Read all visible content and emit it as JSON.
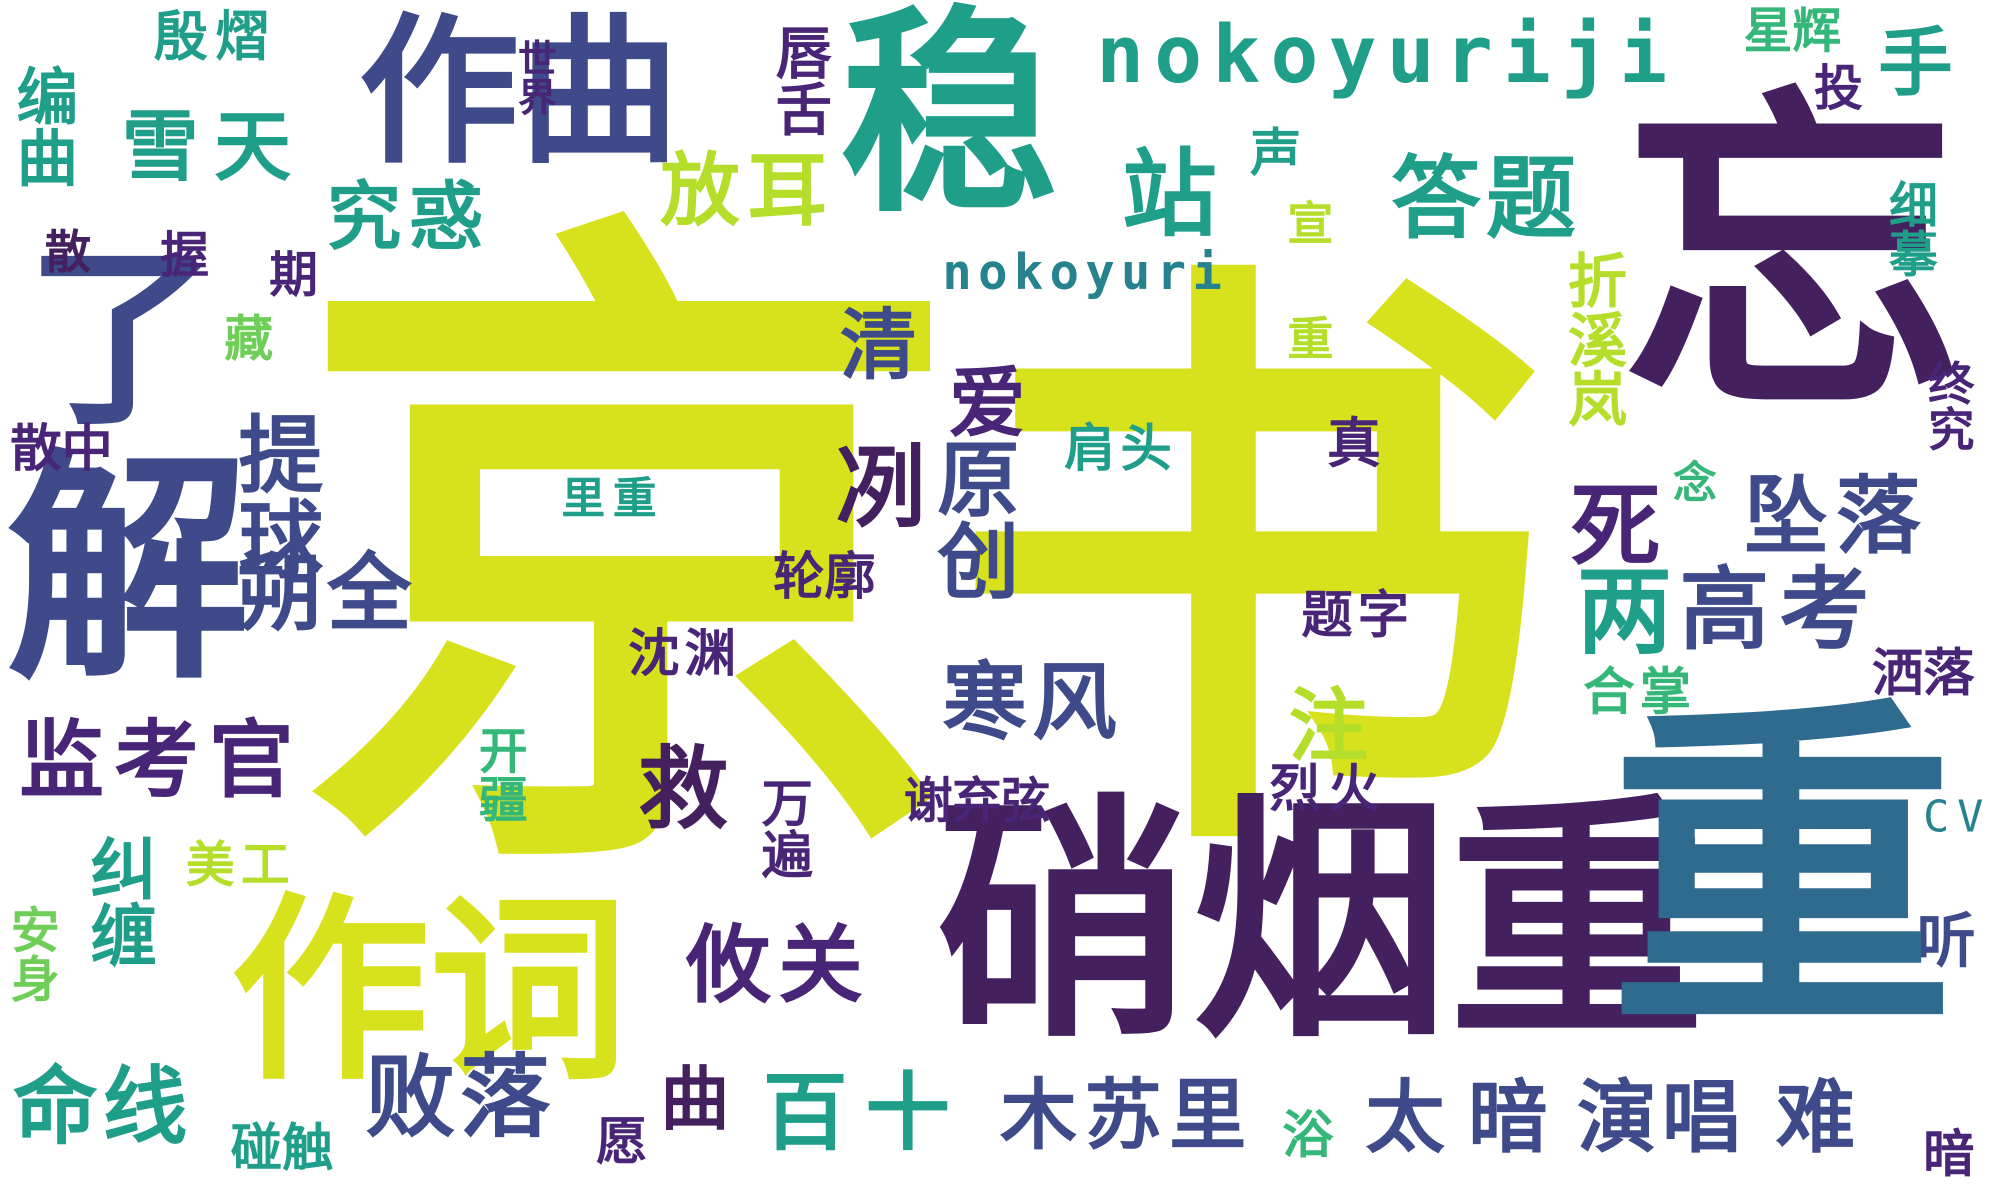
{
  "words": {
    "jing": "京",
    "shu": "书",
    "wang": "忘",
    "wen": "稳",
    "xiaoyanchong": "硝烟重",
    "zuoci": "作词",
    "zuoqu": "作曲",
    "nokoyuriji": "nokoyuriji",
    "nokoyuri": "nokoyuri",
    "jie": "解",
    "da": "答",
    "le": "了",
    "xuetian": "雪天",
    "jiujinggan": "究惑",
    "fanger": "放耳",
    "zhan": "站",
    "dati": "答题",
    "shou": "手",
    "tou": "投",
    "xinghui": "星辉",
    "yinjiu": "殷熠",
    "bianqu": "编曲",
    "chunshe": "唇舌",
    "shijie": "世界",
    "sheng": "声",
    "san": "散",
    "wo": "握",
    "qi": "期",
    "qing": "清",
    "ai": "爱",
    "zhexixue": "折溪岚",
    "ximo": "细摹",
    "zhongjiu": "终究",
    "nian": "念",
    "cang": "藏",
    "sanzhong": "散中",
    "tiqiu": "提球",
    "lizhong": "里重",
    "jiantou": "肩头",
    "zhen": "真",
    "lie": "冽",
    "yuanchuang": "原创",
    "si": "死",
    "zhuiluo": "坠落",
    "liang": "两",
    "gaokao": "高考",
    "shuoquan": "朔全",
    "lunkuo": "轮廓",
    "chenyuan": "沈渊",
    "tizi": "题字",
    "sashuo": "洒落",
    "hezhang": "合掌",
    "hanfeng": "寒风",
    "zhu": "注",
    "jiankaoguan": "监考官",
    "jiu": "救",
    "xiebian": "谢弃弦",
    "liehuo": "烈火",
    "cv": "CV",
    "kaijiang": "开疆",
    "wanbian": "万遍",
    "meigong": "美工",
    "jiuchan": "纠缠",
    "youguan": "攸关",
    "ting": "听",
    "anshen": "安身",
    "minxian": "命线",
    "bailuo": "败落",
    "bai": "百",
    "shi": "十",
    "qu": "曲",
    "musuli": "木苏里",
    "tai": "太",
    "an": "暗",
    "yanchang": "演唱",
    "nan": "难",
    "pengchu": "碰触",
    "yuan": "愿",
    "yu": "浴",
    "an2": "暗",
    "zhong2": "重",
    "dan": "宣",
    "jing2": "京",
    "qiu2": "球"
  },
  "colors": {
    "yellow_green": "#d7e11c",
    "dark_purple": "#44205e",
    "steel_blue": "#2e6b8e",
    "teal": "#1f9e89",
    "green": "#35b779",
    "indigo": "#3e4a89",
    "light_green": "#6ece58",
    "cyan_teal": "#26828e",
    "violet": "#482576",
    "lime": "#b5de2b",
    "background": "#ffffff"
  }
}
